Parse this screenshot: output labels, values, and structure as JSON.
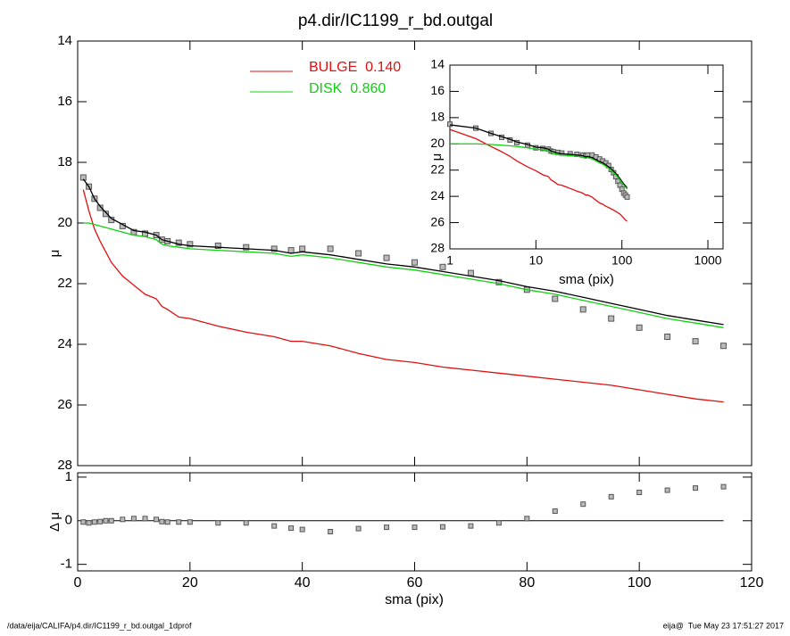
{
  "chart_data": [
    {
      "type": "line",
      "title": "p4.dir/IC1199_r_bd.outgal",
      "ylabel": "μ",
      "x": [
        1,
        2,
        3,
        4,
        5,
        6,
        8,
        10,
        12,
        14,
        15,
        16,
        18,
        20,
        25,
        30,
        35,
        38,
        40,
        45,
        50,
        55,
        60,
        65,
        70,
        75,
        80,
        85,
        90,
        95,
        100,
        105,
        110,
        115
      ],
      "xlim": [
        0,
        120
      ],
      "ylim": [
        28,
        14
      ],
      "yticks": [
        14,
        16,
        18,
        20,
        22,
        24,
        26,
        28
      ],
      "series": [
        {
          "marker": "square",
          "color": "#555555",
          "values": [
            18.5,
            18.8,
            19.2,
            19.5,
            19.7,
            19.9,
            20.1,
            20.3,
            20.35,
            20.4,
            20.55,
            20.6,
            20.65,
            20.7,
            20.75,
            20.8,
            20.85,
            20.9,
            20.85,
            20.85,
            21.0,
            21.15,
            21.3,
            21.45,
            21.65,
            21.95,
            22.2,
            22.5,
            22.85,
            23.15,
            23.45,
            23.75,
            23.9,
            24.05
          ]
        },
        {
          "color": "#000000",
          "values": [
            18.55,
            18.8,
            19.2,
            19.45,
            19.65,
            19.85,
            20.05,
            20.25,
            20.3,
            20.4,
            20.55,
            20.6,
            20.7,
            20.75,
            20.8,
            20.85,
            20.9,
            21.0,
            20.95,
            21.05,
            21.2,
            21.35,
            21.45,
            21.6,
            21.75,
            21.9,
            22.1,
            22.25,
            22.45,
            22.65,
            22.85,
            23.05,
            23.2,
            23.35
          ]
        },
        {
          "name": "BULGE  0.140",
          "color": "#e01010",
          "values": [
            18.9,
            19.6,
            20.2,
            20.6,
            20.95,
            21.3,
            21.75,
            22.05,
            22.35,
            22.5,
            22.75,
            22.85,
            23.1,
            23.15,
            23.4,
            23.6,
            23.75,
            23.9,
            23.9,
            24.05,
            24.3,
            24.5,
            24.6,
            24.75,
            24.85,
            24.95,
            25.05,
            25.15,
            25.25,
            25.35,
            25.5,
            25.65,
            25.8,
            25.9
          ]
        },
        {
          "name": "DISK  0.860",
          "color": "#10d010",
          "values": [
            20.0,
            20.0,
            20.05,
            20.1,
            20.15,
            20.2,
            20.3,
            20.4,
            20.45,
            20.55,
            20.7,
            20.75,
            20.8,
            20.85,
            20.9,
            20.95,
            21.0,
            21.1,
            21.05,
            21.15,
            21.3,
            21.45,
            21.55,
            21.7,
            21.85,
            22.0,
            22.2,
            22.35,
            22.55,
            22.75,
            22.95,
            23.15,
            23.3,
            23.45
          ]
        }
      ]
    },
    {
      "type": "scatter",
      "xlabel": "sma (pix)",
      "ylabel": "Δ μ",
      "x": [
        1,
        2,
        3,
        4,
        5,
        6,
        8,
        10,
        12,
        14,
        15,
        16,
        18,
        20,
        25,
        30,
        35,
        38,
        40,
        45,
        50,
        55,
        60,
        65,
        70,
        75,
        80,
        85,
        90,
        95,
        100,
        105,
        110,
        115
      ],
      "xlim": [
        0,
        120
      ],
      "xticks": [
        0,
        20,
        40,
        60,
        80,
        100,
        120
      ],
      "ylim": [
        -1.15,
        1.1
      ],
      "yticks": [
        -1,
        0,
        1
      ],
      "hline": 0,
      "color": "#555555",
      "values": [
        -0.03,
        -0.05,
        -0.03,
        -0.02,
        0,
        0,
        0.03,
        0.05,
        0.05,
        0.03,
        -0.02,
        -0.03,
        -0.03,
        -0.03,
        -0.05,
        -0.05,
        -0.12,
        -0.17,
        -0.2,
        -0.25,
        -0.18,
        -0.15,
        -0.15,
        -0.14,
        -0.12,
        -0.05,
        0.05,
        0.22,
        0.38,
        0.55,
        0.65,
        0.7,
        0.75,
        0.78
      ]
    },
    {
      "type": "line",
      "xscale": "log",
      "xlabel": "sma (pix)",
      "ylabel": "μ",
      "xlim": [
        1,
        1500
      ],
      "xticks": [
        1,
        10,
        100,
        1000
      ],
      "ylim": [
        28,
        14
      ],
      "yticks": [
        14,
        16,
        18,
        20,
        22,
        24,
        26,
        28
      ]
    }
  ],
  "footer": {
    "left": "/data/eija/CALIFA/p4.dir/IC1199_r_bd.outgal_1dprof",
    "right": "eija@  Tue May 23 17:51:27 2017"
  }
}
